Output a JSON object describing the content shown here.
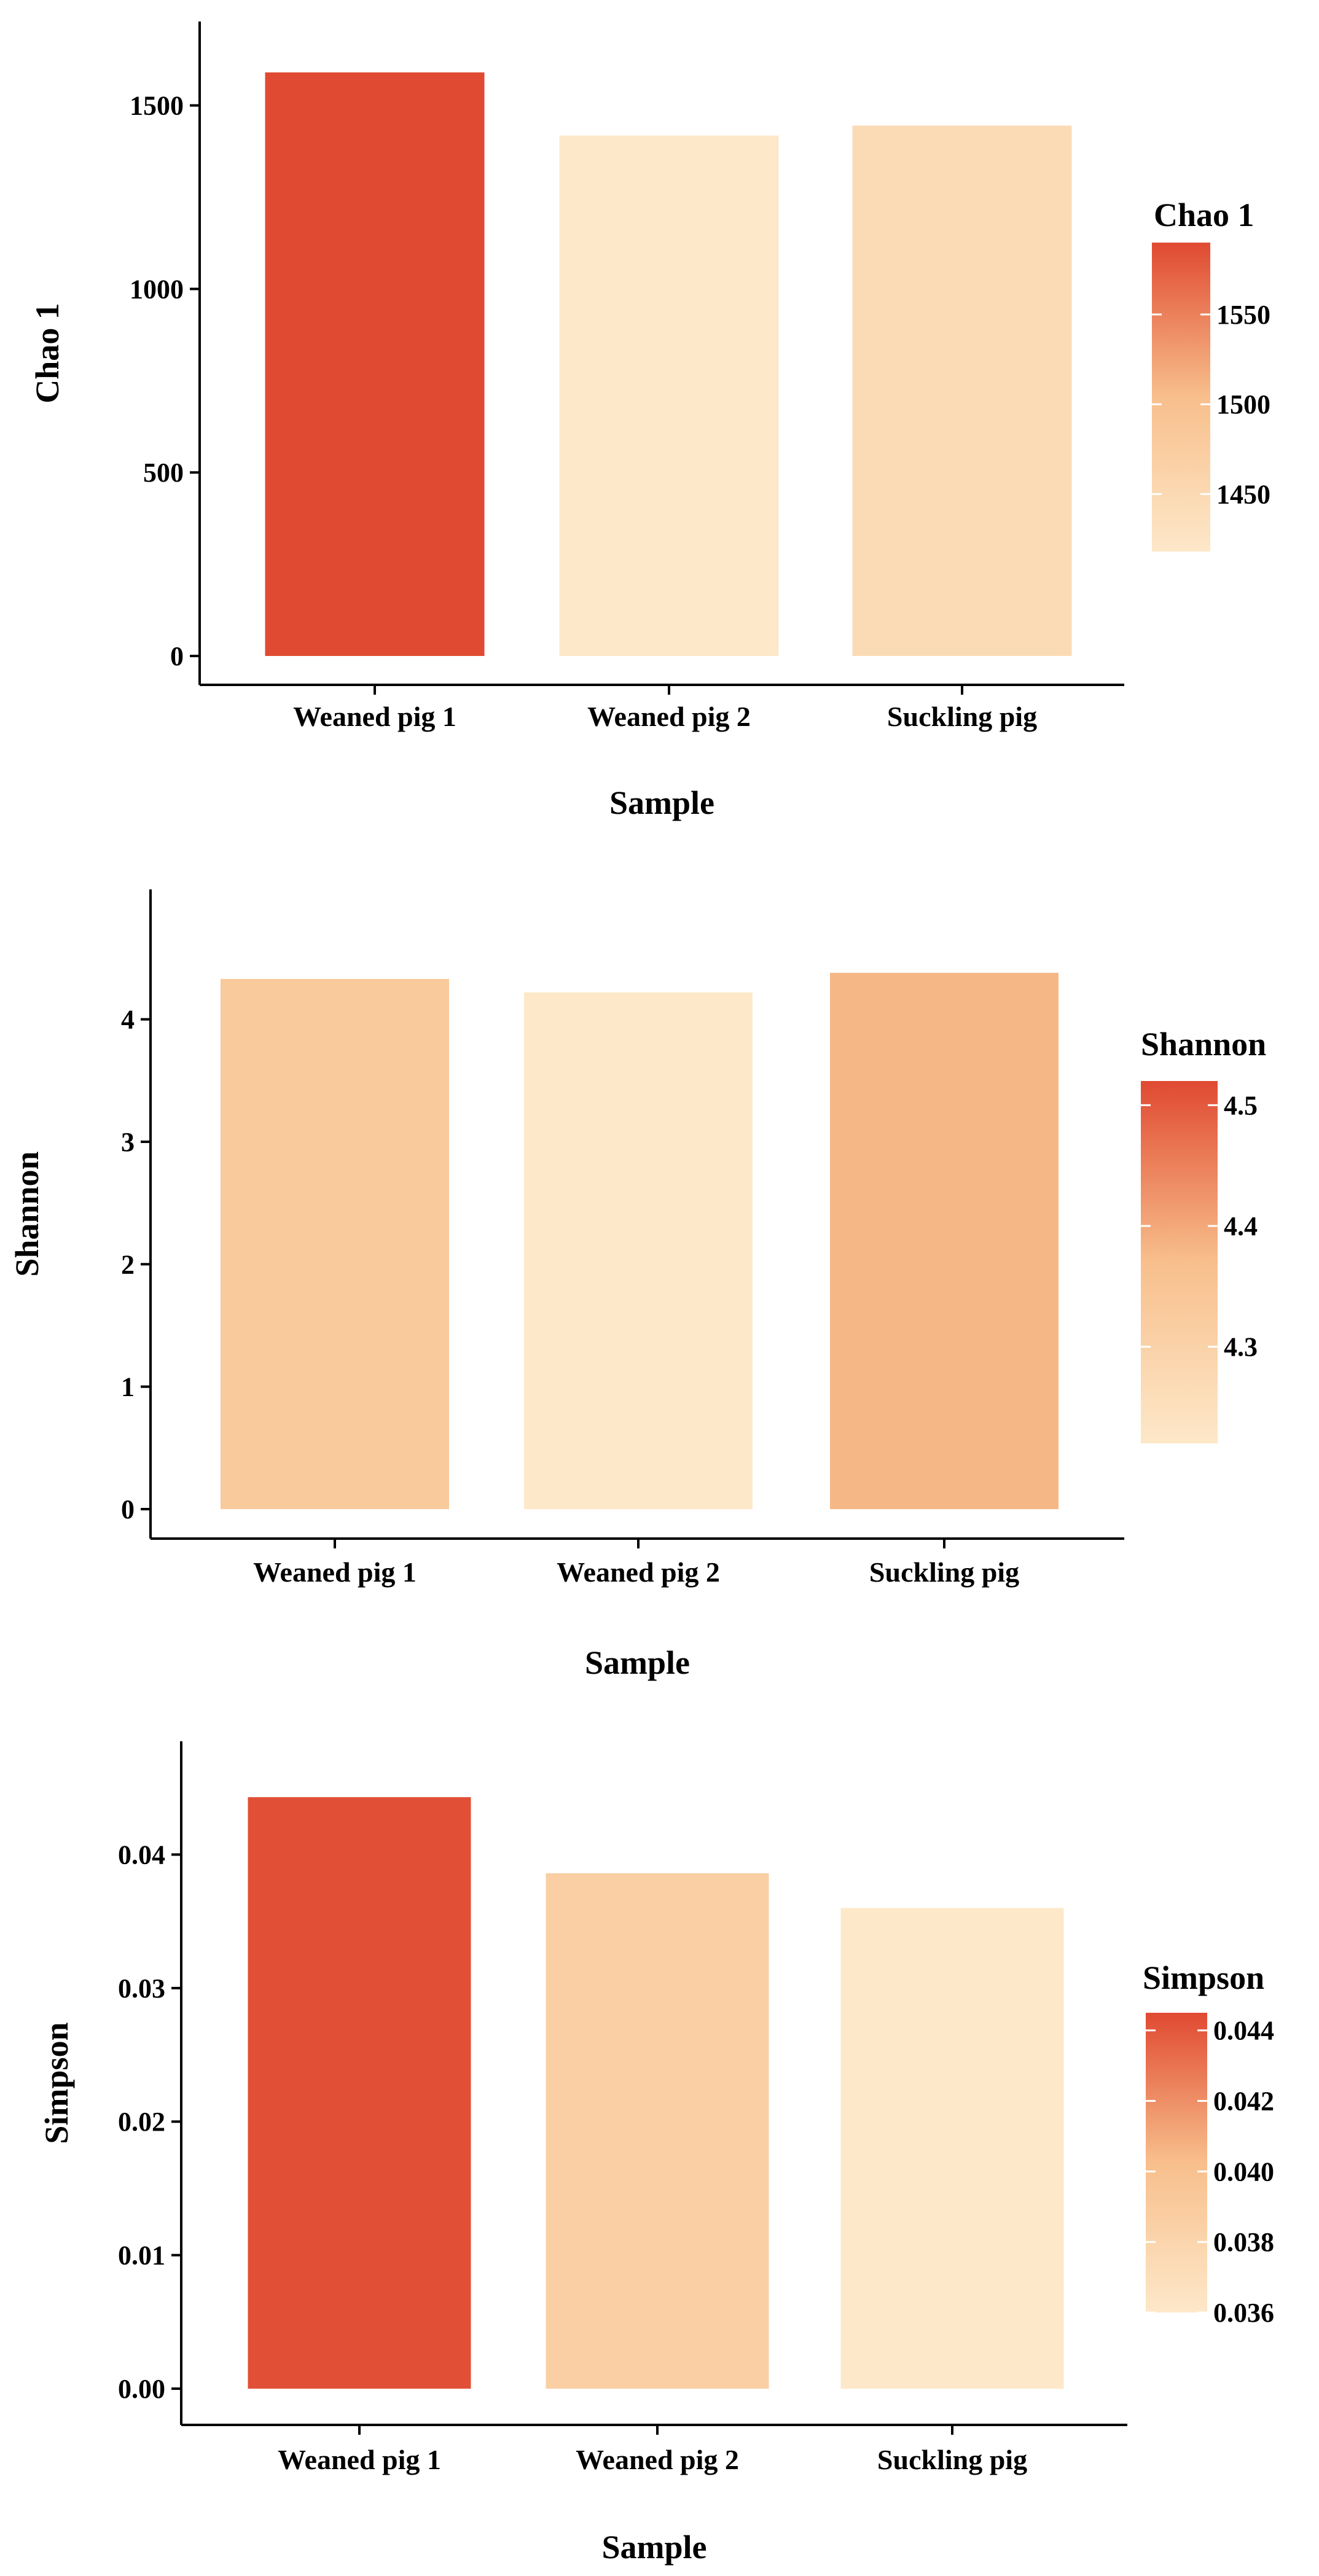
{
  "chart_data": [
    {
      "type": "bar",
      "categories": [
        "Weaned pig 1",
        "Weaned pig 2",
        "Suckling pig"
      ],
      "values": [
        1590,
        1418,
        1445
      ],
      "xlabel": "Sample",
      "ylabel": "Chao 1",
      "ylim": [
        0,
        1650
      ],
      "yticks": [
        0,
        500,
        1000,
        1500
      ],
      "grid": false,
      "legend": {
        "title": "Chao 1",
        "placement": "right",
        "range": [
          1418,
          1590
        ],
        "ticks": [
          1450,
          1500,
          1550
        ]
      }
    },
    {
      "type": "bar",
      "categories": [
        "Weaned pig 1",
        "Weaned pig 2",
        "Suckling pig"
      ],
      "values": [
        4.33,
        4.22,
        4.38
      ],
      "xlabel": "Sample",
      "ylabel": "Shannon",
      "ylim": [
        0,
        4.65
      ],
      "yticks": [
        0,
        1,
        2,
        3,
        4
      ],
      "grid": false,
      "legend": {
        "title": "Shannon",
        "placement": "right",
        "range": [
          4.22,
          4.52
        ],
        "ticks": [
          4.3,
          4.4,
          4.5
        ]
      }
    },
    {
      "type": "bar",
      "categories": [
        "Weaned pig 1",
        "Weaned pig 2",
        "Suckling pig"
      ],
      "values": [
        0.0443,
        0.0386,
        0.036
      ],
      "xlabel": "Sample",
      "ylabel": "Simpson",
      "ylim": [
        0,
        0.046
      ],
      "yticks": [
        "0.00",
        "0.01",
        "0.02",
        "0.03",
        "0.04"
      ],
      "grid": false,
      "legend": {
        "title": "Simpson",
        "placement": "right",
        "range": [
          0.036,
          0.0445
        ],
        "ticks": [
          "0.036",
          "0.038",
          "0.040",
          "0.042",
          "0.044"
        ]
      }
    }
  ],
  "colors": {
    "low": "#fde8c9",
    "mid": "#f8bf8c",
    "high": "#e04a32",
    "axis": "#000000"
  }
}
